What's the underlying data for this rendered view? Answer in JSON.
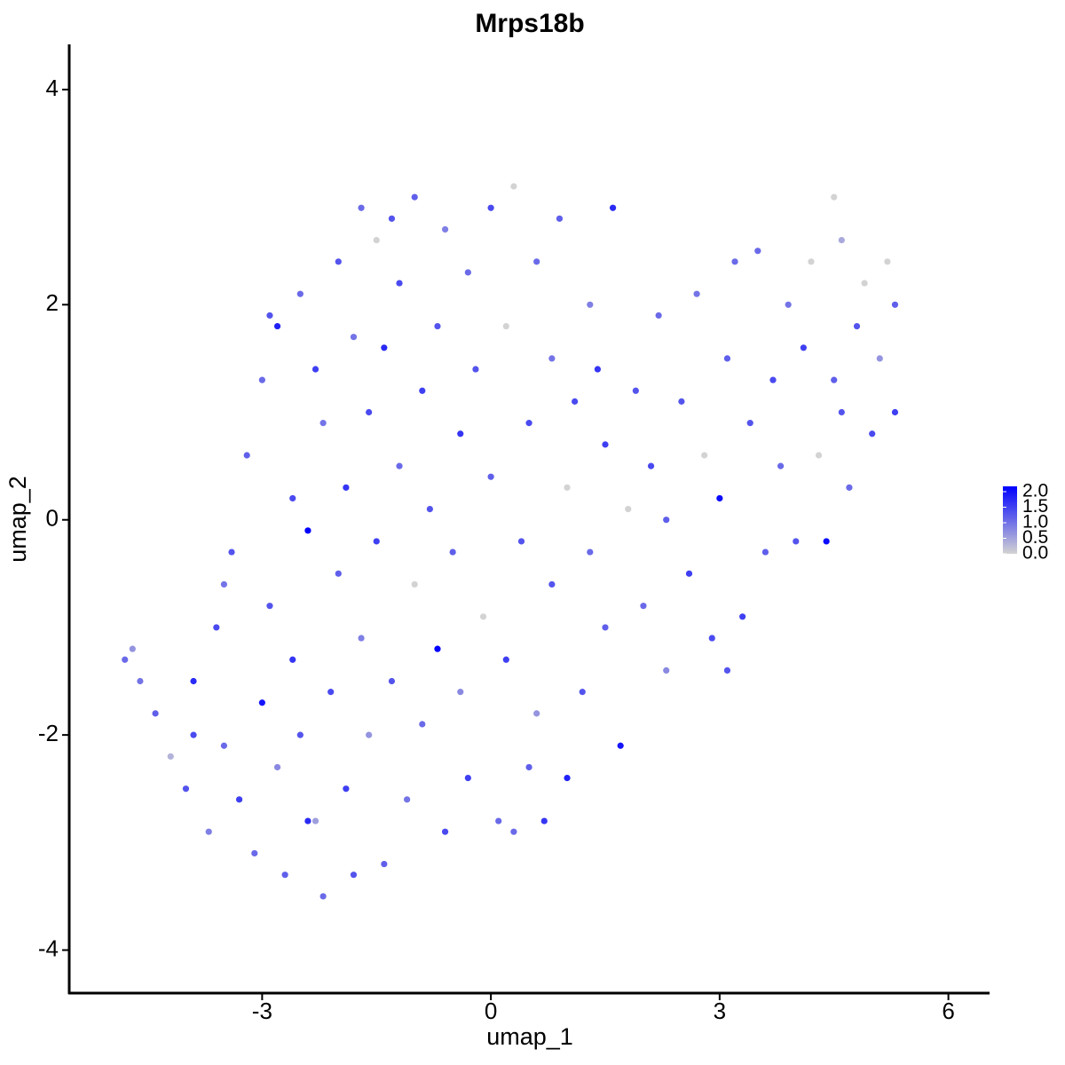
{
  "chart_data": {
    "type": "scatter",
    "title": "Mrps18b",
    "x_label": "umap_1",
    "y_label": "umap_2",
    "xlim": [
      -5.53,
      6.54
    ],
    "ylim": [
      -4.4,
      4.42
    ],
    "xticks": [
      -3,
      0,
      3,
      6
    ],
    "yticks": [
      -4,
      -2,
      0,
      2,
      4
    ],
    "color_low": "#d3d3d3",
    "color_high": "#0000ff",
    "clim": [
      0,
      2
    ],
    "cticks": [
      {
        "value": 0,
        "label": "0.0"
      },
      {
        "value": 0.5,
        "label": "0.5"
      },
      {
        "value": 1,
        "label": "1.0"
      },
      {
        "value": 1.5,
        "label": "1.5"
      },
      {
        "value": 2,
        "label": "2.0"
      }
    ],
    "x": [
      -4.8,
      -4.7,
      -4.6,
      -4.4,
      -4.2,
      -4.0,
      -3.9,
      -3.7,
      -3.6,
      -3.5,
      -3.4,
      -3.3,
      -3.2,
      -3.1,
      -3.0,
      -3.0,
      -2.9,
      -2.8,
      -2.8,
      -2.7,
      -2.6,
      -2.6,
      -2.5,
      -2.5,
      -2.4,
      -2.3,
      -2.3,
      -2.2,
      -2.2,
      -2.1,
      -2.0,
      -2.0,
      -1.9,
      -1.9,
      -1.8,
      -1.8,
      -1.7,
      -1.7,
      -1.6,
      -1.6,
      -1.5,
      -1.5,
      -1.4,
      -1.4,
      -1.3,
      -1.2,
      -1.2,
      -1.1,
      -1.0,
      -1.0,
      -0.9,
      -0.9,
      -0.8,
      -0.7,
      -0.7,
      -0.6,
      -0.6,
      -0.5,
      -0.4,
      -0.4,
      -0.3,
      -0.3,
      -0.2,
      -0.1,
      0.0,
      0.0,
      0.1,
      0.2,
      0.2,
      0.3,
      0.4,
      0.5,
      0.5,
      0.6,
      0.6,
      0.7,
      0.8,
      0.8,
      0.9,
      1.0,
      1.0,
      1.1,
      1.2,
      1.3,
      1.3,
      1.5,
      1.5,
      1.6,
      1.7,
      1.8,
      1.9,
      2.0,
      2.1,
      2.2,
      2.3,
      2.5,
      2.6,
      2.7,
      2.8,
      2.9,
      3.0,
      3.1,
      3.2,
      3.3,
      3.4,
      3.5,
      3.6,
      3.7,
      3.8,
      3.9,
      4.0,
      4.1,
      4.2,
      4.3,
      4.4,
      4.5,
      4.5,
      4.6,
      4.7,
      4.8,
      4.9,
      5.0,
      5.1,
      5.2,
      5.3,
      5.3,
      -3.9,
      -3.5,
      -2.9,
      -2.4,
      -1.3,
      0.3,
      1.4,
      2.3,
      3.1,
      4.6
    ],
    "values": [
      -1.3,
      -1.2,
      -1.5,
      -1.8,
      -2.2,
      -2.5,
      -1.5,
      -2.9,
      -1.0,
      -2.1,
      -0.3,
      -2.6,
      0.6,
      -3.1,
      -1.7,
      1.3,
      -0.8,
      1.8,
      -2.3,
      -3.3,
      0.2,
      -1.3,
      2.1,
      -2.0,
      -0.1,
      1.4,
      -2.8,
      0.9,
      -3.5,
      -1.6,
      2.4,
      -0.5,
      0.3,
      -2.5,
      1.7,
      -3.3,
      2.9,
      -1.1,
      1.0,
      -2.0,
      2.6,
      -0.2,
      1.6,
      -3.2,
      -1.5,
      0.5,
      2.2,
      -2.6,
      -0.6,
      3.0,
      1.2,
      -1.9,
      0.1,
      -1.2,
      1.8,
      2.7,
      -2.9,
      -0.3,
      0.8,
      -1.6,
      2.3,
      -2.4,
      1.4,
      -0.9,
      0.4,
      2.9,
      -2.8,
      -1.3,
      1.8,
      3.1,
      -0.2,
      -2.3,
      0.9,
      2.4,
      -1.8,
      -2.8,
      1.5,
      -0.6,
      2.8,
      -2.4,
      0.3,
      1.1,
      -1.6,
      -0.3,
      2.0,
      0.7,
      -1.0,
      2.9,
      -2.1,
      0.1,
      1.2,
      -0.8,
      0.5,
      1.9,
      -1.4,
      1.1,
      -0.5,
      2.1,
      0.6,
      -1.1,
      0.2,
      1.5,
      2.4,
      -0.9,
      0.9,
      2.5,
      -0.3,
      1.3,
      0.5,
      2.0,
      -0.2,
      1.6,
      2.4,
      0.6,
      -0.2,
      3.0,
      1.3,
      2.6,
      0.3,
      1.8,
      2.2,
      0.8,
      1.5,
      2.4,
      1.0,
      2.0,
      -2.0,
      -0.6,
      1.9,
      -2.8,
      2.8,
      -2.9,
      1.4,
      0.0,
      -1.4,
      1.0
    ],
    "expression": [
      1.0,
      0.6,
      0.9,
      1.1,
      0.3,
      1.2,
      1.6,
      0.8,
      1.3,
      1.0,
      1.2,
      1.4,
      1.1,
      1.0,
      1.8,
      1.0,
      1.2,
      1.7,
      0.7,
      1.1,
      1.3,
      1.5,
      1.0,
      1.2,
      2.0,
      1.4,
      0.5,
      0.9,
      1.0,
      1.3,
      1.2,
      1.1,
      1.5,
      1.4,
      0.9,
      1.2,
      1.0,
      0.8,
      1.3,
      0.6,
      0.0,
      1.4,
      1.6,
      1.1,
      1.2,
      1.0,
      1.3,
      0.9,
      0.0,
      1.1,
      1.4,
      1.0,
      1.2,
      2.0,
      1.2,
      0.8,
      1.3,
      1.1,
      1.5,
      0.7,
      1.0,
      1.4,
      1.2,
      0.0,
      1.1,
      1.3,
      1.0,
      1.4,
      0.0,
      0.0,
      1.2,
      1.1,
      1.3,
      1.0,
      0.6,
      1.5,
      0.9,
      1.2,
      1.1,
      1.7,
      0.0,
      1.3,
      1.2,
      1.0,
      0.8,
      1.4,
      1.1,
      1.6,
      1.8,
      0.0,
      1.2,
      1.0,
      1.3,
      1.0,
      0.7,
      1.2,
      1.4,
      0.9,
      0.0,
      1.3,
      1.9,
      1.1,
      1.0,
      1.4,
      1.2,
      1.0,
      1.1,
      1.3,
      1.0,
      0.9,
      1.2,
      1.4,
      0.0,
      0.0,
      1.9,
      0.0,
      1.1,
      0.4,
      1.0,
      1.2,
      0.0,
      1.3,
      0.6,
      0.0,
      1.4,
      1.1,
      1.3,
      0.9,
      1.2,
      1.6,
      1.2,
      1.0,
      1.5,
      1.1,
      1.2,
      1.2
    ]
  }
}
